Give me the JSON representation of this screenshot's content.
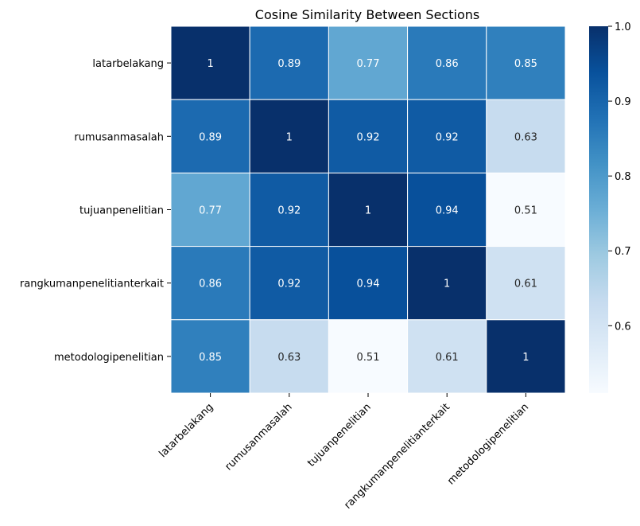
{
  "chart_data": {
    "type": "heatmap",
    "title": "Cosine Similarity Between Sections",
    "row_labels": [
      "latarbelakang",
      "rumusanmasalah",
      "tujuanpenelitian",
      "rangkumanpenelitianterkait",
      "metodologipenelitian"
    ],
    "col_labels": [
      "latarbelakang",
      "rumusanmasalah",
      "tujuanpenelitian",
      "rangkumanpenelitianterkait",
      "metodologipenelitian"
    ],
    "values": [
      [
        1,
        0.89,
        0.77,
        0.86,
        0.85
      ],
      [
        0.89,
        1,
        0.92,
        0.92,
        0.63
      ],
      [
        0.77,
        0.92,
        1,
        0.94,
        0.51
      ],
      [
        0.86,
        0.92,
        0.94,
        1,
        0.61
      ],
      [
        0.85,
        0.63,
        0.51,
        0.61,
        1
      ]
    ],
    "cell_labels": [
      [
        "1",
        "0.89",
        "0.77",
        "0.86",
        "0.85"
      ],
      [
        "0.89",
        "1",
        "0.92",
        "0.92",
        "0.63"
      ],
      [
        "0.77",
        "0.92",
        "1",
        "0.94",
        "0.51"
      ],
      [
        "0.86",
        "0.92",
        "0.94",
        "1",
        "0.61"
      ],
      [
        "0.85",
        "0.63",
        "0.51",
        "0.61",
        "1"
      ]
    ],
    "colormap": "Blues",
    "colormap_stops": [
      "#f7fbff",
      "#deebf7",
      "#c6dbef",
      "#9ecae1",
      "#6baed6",
      "#4292c6",
      "#2171b5",
      "#08519c",
      "#08306b"
    ],
    "vmin": 0.51,
    "vmax": 1.0,
    "colorbar_ticks": [
      0.6,
      0.7,
      0.8,
      0.9,
      1.0
    ],
    "colorbar_tick_labels": [
      "0.6",
      "0.7",
      "0.8",
      "0.9",
      "1.0"
    ],
    "cell_border_color": "#ffffff",
    "text_dark": "#262626",
    "text_light": "#ffffff"
  }
}
